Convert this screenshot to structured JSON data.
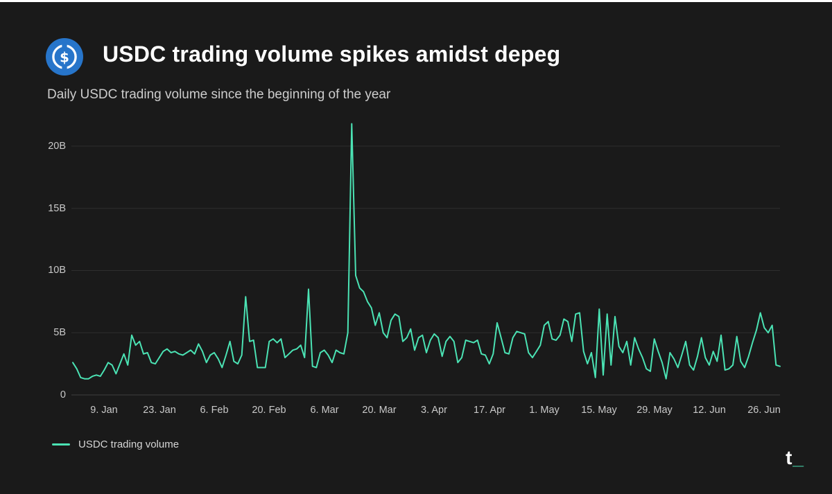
{
  "header": {
    "title": "USDC trading volume spikes amidst depeg",
    "subtitle": "Daily USDC trading volume since the beginning of the year"
  },
  "icons": {
    "dollar": "$",
    "usdc_logo": "usdc-coin-icon"
  },
  "legend": {
    "label": "USDC trading volume"
  },
  "brand": {
    "t": "t",
    "underscore": "_"
  },
  "colors": {
    "background": "#1a1a1a",
    "line": "#4be3b4",
    "usdc_blue": "#2775CA",
    "grid": "#2e2e2e",
    "grid_zero": "#3e3e3e",
    "text_primary": "#ffffff",
    "text_secondary": "#c9c9c9"
  },
  "chart_data": {
    "type": "line",
    "title": "USDC trading volume spikes amidst depeg",
    "subtitle": "Daily USDC trading volume since the beginning of the year",
    "value_unit": "billions USD per day",
    "grid": "horizontal",
    "legend_position": "bottom-left",
    "ylim": [
      0,
      22
    ],
    "y_ticks": [
      20,
      15,
      10,
      5,
      0
    ],
    "y_tick_labels": [
      "20B",
      "15B",
      "10B",
      "5B",
      "0"
    ],
    "x_tick_labels": [
      "9. Jan",
      "23. Jan",
      "6. Feb",
      "20. Feb",
      "6. Mar",
      "20. Mar",
      "3. Apr",
      "17. Apr",
      "1. May",
      "15. May",
      "29. May",
      "12. Jun",
      "26. Jun"
    ],
    "x_tick_indices": [
      8,
      22,
      36,
      50,
      64,
      78,
      92,
      106,
      120,
      134,
      148,
      162,
      176
    ],
    "series": [
      {
        "name": "USDC trading volume",
        "color": "#4be3b4"
      }
    ],
    "values": [
      2.6,
      2.1,
      1.4,
      1.3,
      1.3,
      1.5,
      1.6,
      1.5,
      2.0,
      2.6,
      2.4,
      1.7,
      2.5,
      3.3,
      2.4,
      4.8,
      4.0,
      4.3,
      3.3,
      3.4,
      2.6,
      2.5,
      3.0,
      3.5,
      3.7,
      3.4,
      3.5,
      3.3,
      3.2,
      3.4,
      3.6,
      3.3,
      4.1,
      3.5,
      2.6,
      3.2,
      3.4,
      2.9,
      2.2,
      3.2,
      4.3,
      2.7,
      2.5,
      3.2,
      7.9,
      4.3,
      4.4,
      2.2,
      2.2,
      2.2,
      4.3,
      4.5,
      4.2,
      4.5,
      3.0,
      3.3,
      3.6,
      3.7,
      4.0,
      3.0,
      8.5,
      2.3,
      2.2,
      3.4,
      3.6,
      3.2,
      2.6,
      3.6,
      3.4,
      3.3,
      5.0,
      21.8,
      9.6,
      8.6,
      8.3,
      7.5,
      7.0,
      5.6,
      6.6,
      5.0,
      4.6,
      6.0,
      6.5,
      6.3,
      4.3,
      4.6,
      5.3,
      3.6,
      4.6,
      4.8,
      3.4,
      4.4,
      4.9,
      4.6,
      3.1,
      4.3,
      4.7,
      4.3,
      2.6,
      3.0,
      4.4,
      4.3,
      4.2,
      4.4,
      3.3,
      3.2,
      2.5,
      3.3,
      5.8,
      4.6,
      3.4,
      3.3,
      4.6,
      5.1,
      5.0,
      4.9,
      3.4,
      3.0,
      3.5,
      4.0,
      5.6,
      5.9,
      4.5,
      4.4,
      4.8,
      6.1,
      5.9,
      4.3,
      6.5,
      6.6,
      3.5,
      2.5,
      3.4,
      1.4,
      6.9,
      1.6,
      6.5,
      2.4,
      6.3,
      3.9,
      3.4,
      4.3,
      2.4,
      4.6,
      3.7,
      3.0,
      2.1,
      1.9,
      4.5,
      3.5,
      2.6,
      1.3,
      3.4,
      2.9,
      2.2,
      3.2,
      4.3,
      2.4,
      2.0,
      3.1,
      4.6,
      3.0,
      2.4,
      3.5,
      2.7,
      4.8,
      2.0,
      2.1,
      2.4,
      4.7,
      2.7,
      2.2,
      3.1,
      4.2,
      5.2,
      6.6,
      5.4,
      5.0,
      5.6,
      2.4,
      2.3
    ]
  }
}
